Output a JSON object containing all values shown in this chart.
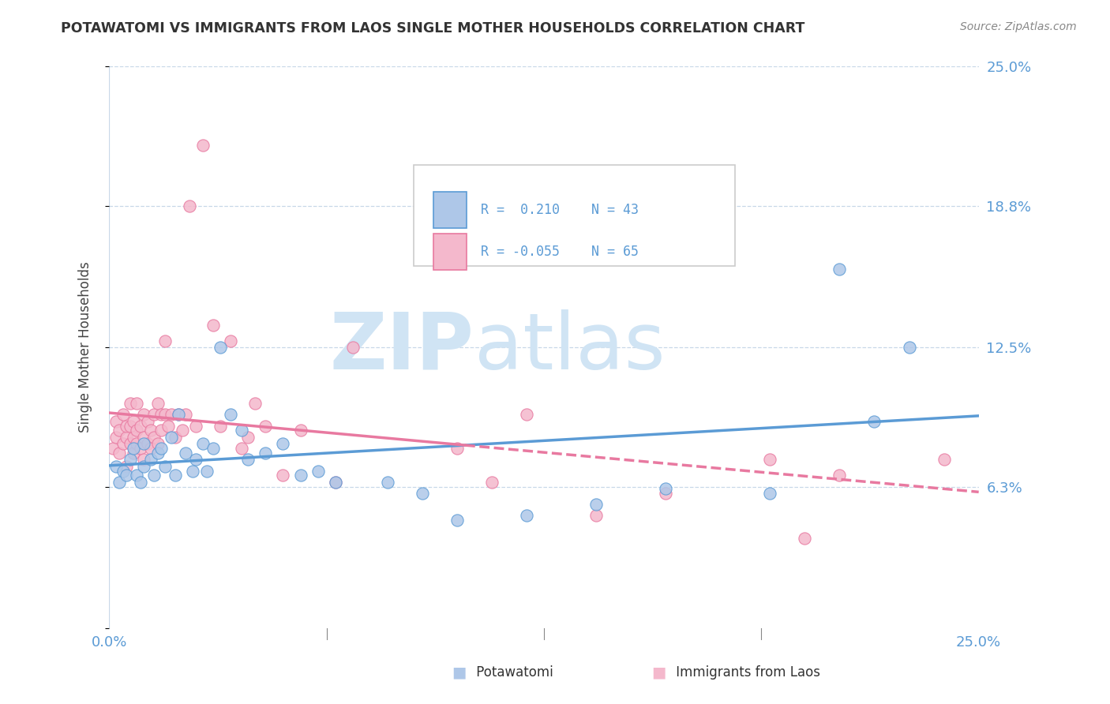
{
  "title": "POTAWATOMI VS IMMIGRANTS FROM LAOS SINGLE MOTHER HOUSEHOLDS CORRELATION CHART",
  "source": "Source: ZipAtlas.com",
  "ylabel": "Single Mother Households",
  "xlim": [
    0.0,
    0.25
  ],
  "ylim": [
    0.0,
    0.25
  ],
  "blue_color": "#5b9bd5",
  "pink_color": "#e879a0",
  "blue_fill": "#aec7e8",
  "pink_fill": "#f4b8cc",
  "grid_color": "#c8d8e8",
  "watermark_color": "#d0e4f4",
  "R_blue": 0.21,
  "N_blue": 43,
  "R_pink": -0.055,
  "N_pink": 65,
  "blue_scatter_x": [
    0.002,
    0.003,
    0.004,
    0.005,
    0.006,
    0.007,
    0.008,
    0.009,
    0.01,
    0.01,
    0.012,
    0.013,
    0.014,
    0.015,
    0.016,
    0.018,
    0.019,
    0.02,
    0.022,
    0.024,
    0.025,
    0.027,
    0.028,
    0.03,
    0.032,
    0.035,
    0.038,
    0.04,
    0.045,
    0.05,
    0.055,
    0.06,
    0.065,
    0.08,
    0.09,
    0.1,
    0.12,
    0.14,
    0.16,
    0.19,
    0.21,
    0.22,
    0.23
  ],
  "blue_scatter_y": [
    0.072,
    0.065,
    0.07,
    0.068,
    0.075,
    0.08,
    0.068,
    0.065,
    0.082,
    0.072,
    0.075,
    0.068,
    0.078,
    0.08,
    0.072,
    0.085,
    0.068,
    0.095,
    0.078,
    0.07,
    0.075,
    0.082,
    0.07,
    0.08,
    0.125,
    0.095,
    0.088,
    0.075,
    0.078,
    0.082,
    0.068,
    0.07,
    0.065,
    0.065,
    0.06,
    0.048,
    0.05,
    0.055,
    0.062,
    0.06,
    0.16,
    0.092,
    0.125
  ],
  "pink_scatter_x": [
    0.001,
    0.002,
    0.002,
    0.003,
    0.003,
    0.004,
    0.004,
    0.005,
    0.005,
    0.005,
    0.006,
    0.006,
    0.006,
    0.007,
    0.007,
    0.007,
    0.008,
    0.008,
    0.008,
    0.009,
    0.009,
    0.01,
    0.01,
    0.01,
    0.011,
    0.011,
    0.012,
    0.012,
    0.013,
    0.013,
    0.014,
    0.014,
    0.015,
    0.015,
    0.016,
    0.016,
    0.017,
    0.018,
    0.019,
    0.02,
    0.021,
    0.022,
    0.023,
    0.025,
    0.027,
    0.03,
    0.032,
    0.035,
    0.038,
    0.04,
    0.042,
    0.045,
    0.05,
    0.055,
    0.065,
    0.07,
    0.1,
    0.11,
    0.12,
    0.14,
    0.16,
    0.19,
    0.2,
    0.21,
    0.24
  ],
  "pink_scatter_y": [
    0.08,
    0.085,
    0.092,
    0.078,
    0.088,
    0.082,
    0.095,
    0.072,
    0.085,
    0.09,
    0.082,
    0.09,
    0.1,
    0.078,
    0.085,
    0.092,
    0.082,
    0.088,
    0.1,
    0.08,
    0.09,
    0.075,
    0.085,
    0.095,
    0.082,
    0.092,
    0.08,
    0.088,
    0.085,
    0.095,
    0.082,
    0.1,
    0.088,
    0.095,
    0.095,
    0.128,
    0.09,
    0.095,
    0.085,
    0.095,
    0.088,
    0.095,
    0.188,
    0.09,
    0.215,
    0.135,
    0.09,
    0.128,
    0.08,
    0.085,
    0.1,
    0.09,
    0.068,
    0.088,
    0.065,
    0.125,
    0.08,
    0.065,
    0.095,
    0.05,
    0.06,
    0.075,
    0.04,
    0.068,
    0.075
  ]
}
